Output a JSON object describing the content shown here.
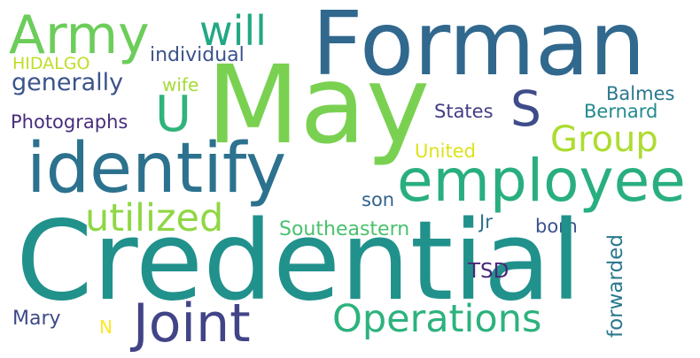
{
  "words": {
    "credential": "Credential",
    "may": "May",
    "forman": "Forman",
    "identify": "identify",
    "employee": "employee",
    "joint": "Joint",
    "army": "Army",
    "operations": "Operations",
    "utilized": "utilized",
    "u": "U",
    "s": "S",
    "group": "Group",
    "will": "will",
    "individual": "individual",
    "generally": "generally",
    "hidalgo": "HIDALGO",
    "photographs": "Photographs",
    "wife": "wife",
    "states": "States",
    "balmes": "Balmes",
    "bernard": "Bernard",
    "united": "United",
    "son": "son",
    "southeastern": "Southeastern",
    "jr": "Jr",
    "born": "born",
    "forwarded": "forwarded",
    "tsd": "TSD",
    "mary": "Mary",
    "n": "N"
  },
  "colors": {
    "credential": "#21918c",
    "may": "#7ad151",
    "forman": "#31688e",
    "identify": "#2c728e",
    "employee": "#29af7f",
    "joint": "#414487",
    "army": "#6ccd5a",
    "operations": "#2db27d",
    "utilized": "#8fd744",
    "u": "#2fb47c",
    "s": "#3e4c8a",
    "group": "#addc30",
    "will": "#22a884",
    "individual": "#3b528b",
    "generally": "#3b528b",
    "hidalgo": "#bddf26",
    "photographs": "#472d7b",
    "wife": "#a5db36",
    "states": "#433e85",
    "balmes": "#2a788e",
    "bernard": "#23898e",
    "united": "#dde318",
    "son": "#33638d",
    "southeastern": "#4ac16d",
    "jr": "#2d708e",
    "born": "#3b528b",
    "forwarded": "#2a788e",
    "tsd": "#482878",
    "mary": "#3e4989",
    "n": "#fde725"
  }
}
